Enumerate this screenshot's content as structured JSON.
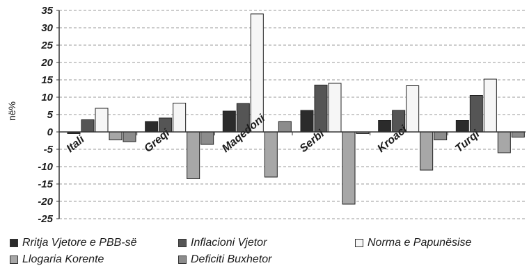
{
  "chart_data": {
    "type": "bar",
    "ylabel": "në%",
    "ylim": [
      -25,
      35
    ],
    "ytick_step": 5,
    "grid": true,
    "legend_position": "bottom",
    "categories": [
      "Itali",
      "Greqi",
      "Maqedoni",
      "Serbi",
      "Kroaci",
      "Turqi"
    ],
    "series": [
      {
        "name": "Rritja Vjetore e PBB-së",
        "color": "#2b2b2b",
        "values": [
          -0.5,
          3.0,
          6.0,
          6.2,
          3.3,
          3.3
        ]
      },
      {
        "name": "Inflacioni Vjetor",
        "color": "#555555",
        "values": [
          3.5,
          4.0,
          8.2,
          13.5,
          6.2,
          10.5
        ]
      },
      {
        "name": "Norma e Papunësise",
        "color": "#f6f6f6",
        "values": [
          6.8,
          8.3,
          34.0,
          14.0,
          13.3,
          15.2
        ]
      },
      {
        "name": "Llogaria Korente",
        "color": "#a7a7a7",
        "values": [
          -2.3,
          -13.5,
          -13.0,
          -20.8,
          -11.0,
          -6.0
        ]
      },
      {
        "name": "Deficiti Buxhetor",
        "color": "#8c8c8c",
        "values": [
          -2.8,
          -3.6,
          3.0,
          -0.5,
          -2.3,
          -1.5
        ]
      }
    ]
  }
}
